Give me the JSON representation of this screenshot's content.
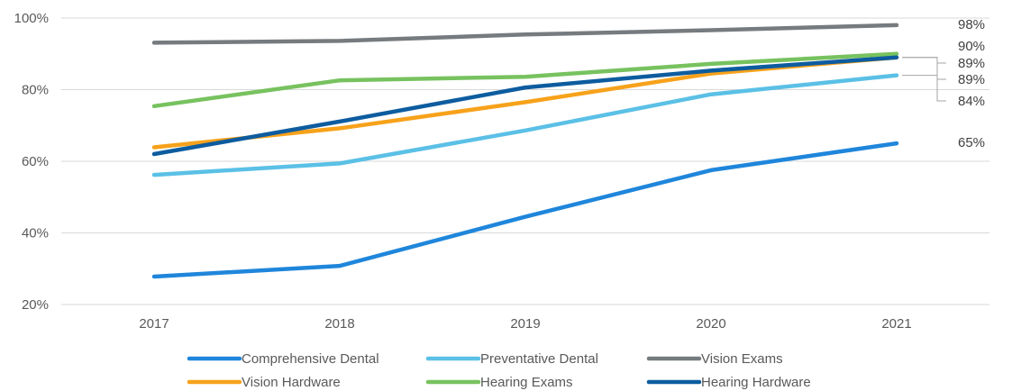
{
  "chart_data": {
    "type": "line",
    "x": [
      "2017",
      "2018",
      "2019",
      "2020",
      "2021"
    ],
    "y_ticks": [
      "20%",
      "40%",
      "60%",
      "80%",
      "100%"
    ],
    "ylim": [
      20,
      100
    ],
    "grid": true,
    "legend_position": "bottom",
    "series": [
      {
        "name": "Comprehensive Dental",
        "color": "#1f86db",
        "values": [
          27.8,
          30.8,
          44.5,
          57.5,
          65
        ],
        "end_label": "65%"
      },
      {
        "name": "Preventative Dental",
        "color": "#5bc0e6",
        "values": [
          56.2,
          59.4,
          68.6,
          78.7,
          84
        ],
        "end_label": "84%"
      },
      {
        "name": "Vision Exams",
        "color": "#767b7f",
        "values": [
          93.1,
          93.6,
          95.4,
          96.6,
          98
        ],
        "end_label": "98%"
      },
      {
        "name": "Vision Hardware",
        "color": "#f7a21b",
        "values": [
          63.9,
          69.2,
          76.5,
          84.5,
          89
        ],
        "end_label": "89%"
      },
      {
        "name": "Hearing Exams",
        "color": "#77c25f",
        "values": [
          75.4,
          82.6,
          83.6,
          87.2,
          90
        ],
        "end_label": "90%"
      },
      {
        "name": "Hearing Hardware",
        "color": "#0d5c9f",
        "values": [
          62.0,
          71.1,
          80.6,
          85.3,
          89
        ],
        "end_label": "89%"
      }
    ]
  }
}
